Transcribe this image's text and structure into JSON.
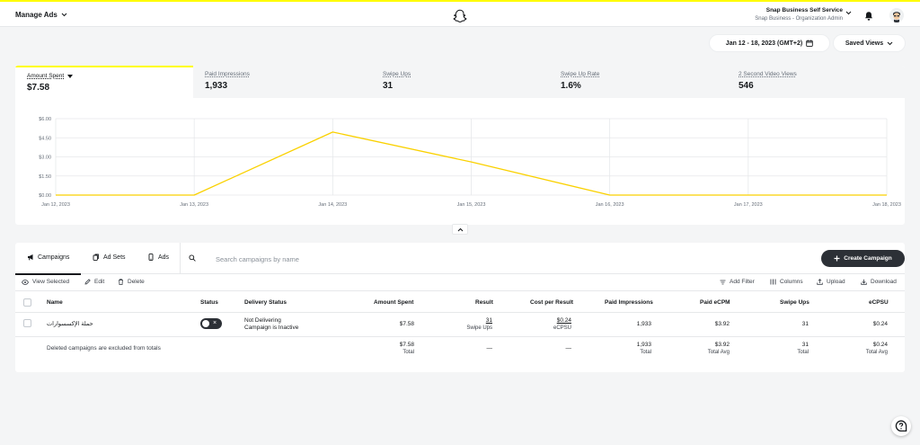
{
  "topbar": {
    "manage_label": "Manage Ads",
    "account_name": "Snap Business Self Service",
    "account_org": "Snap Business - Organization Admin"
  },
  "controls": {
    "date_range": "Jan 12 - 18, 2023 (GMT+2)",
    "saved_views": "Saved Views"
  },
  "metric_tabs": [
    {
      "label": "Amount Spent",
      "value": "$7.58"
    },
    {
      "label": "Paid Impressions",
      "value": "1,933"
    },
    {
      "label": "Swipe Ups",
      "value": "31"
    },
    {
      "label": "Swipe Up Rate",
      "value": "1.6%"
    },
    {
      "label": "2 Second Video Views",
      "value": "546"
    }
  ],
  "chart_data": {
    "type": "line",
    "x": [
      "Jan 12, 2023",
      "Jan 13, 2023",
      "Jan 14, 2023",
      "Jan 15, 2023",
      "Jan 16, 2023",
      "Jan 17, 2023",
      "Jan 18, 2023"
    ],
    "series": [
      {
        "values": [
          0,
          0,
          4.95,
          2.6,
          0,
          0,
          0
        ],
        "color": "#fad100"
      }
    ],
    "ytick_labels": [
      "$6.00",
      "$4.50",
      "$3.00",
      "$1.50",
      "$0.00"
    ],
    "ylim": [
      0,
      6
    ],
    "grid": true
  },
  "table": {
    "tabs": [
      "Campaigns",
      "Ad Sets",
      "Ads"
    ],
    "search_placeholder": "Search campaigns by name",
    "create_label": "Create Campaign",
    "actions_left": [
      "View Selected",
      "Edit",
      "Delete"
    ],
    "actions_right": [
      "Add Filter",
      "Columns",
      "Upload",
      "Download"
    ],
    "columns": [
      "Name",
      "Status",
      "Delivery Status",
      "Amount Spent",
      "Result",
      "Cost per Result",
      "Paid Impressions",
      "Paid eCPM",
      "Swipe Ups",
      "eCPSU"
    ],
    "row": {
      "name": "حملة الإكسسوارات",
      "delivery_1": "Not Delivering",
      "delivery_2": "Campaign is Inactive",
      "amount": "$7.58",
      "result": "31",
      "result_sub": "Swipe Ups",
      "cost": "$0.24",
      "cost_sub": "eCPSU",
      "impressions": "1,933",
      "ecpm": "$3.92",
      "swipe_ups": "31",
      "ecpsu": "$0.24"
    },
    "totals": {
      "note": "Deleted campaigns are excluded from totals",
      "amount": "$7.58",
      "amount_sub": "Total",
      "result": "—",
      "cost": "—",
      "impressions": "1,933",
      "impressions_sub": "Total",
      "ecpm": "$3.92",
      "ecpm_sub": "Total Avg",
      "swipe_ups": "31",
      "swipe_ups_sub": "Total",
      "ecpsu": "$0.24",
      "ecpsu_sub": "Total Avg"
    }
  },
  "colors": {
    "accent": "#fffc00",
    "line": "#fad100",
    "dark": "#2c3036"
  }
}
